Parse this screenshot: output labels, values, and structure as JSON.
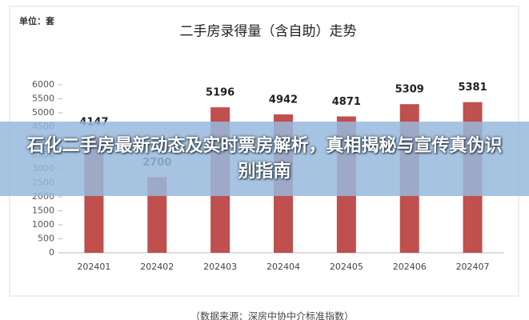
{
  "chart_data": {
    "type": "bar",
    "title": "二手房录得量（含自助）走势",
    "unit": "单位：套",
    "categories": [
      "202401",
      "202402",
      "202403",
      "202404",
      "202405",
      "202406",
      "202407"
    ],
    "values": [
      4147,
      2700,
      5196,
      4942,
      4871,
      5309,
      5381
    ],
    "color": "#c0504d",
    "ylim": [
      0,
      6000
    ],
    "yticks": [
      0,
      500,
      1000,
      1500,
      2000,
      2500,
      3000,
      3500,
      4000,
      4500,
      5000,
      5500,
      6000
    ],
    "source": "（数据来源：深房中协中介标准指数）"
  },
  "banner": "石化二手房最新动态及实时票房解析，真相揭秘与宣传真伪识别指南"
}
